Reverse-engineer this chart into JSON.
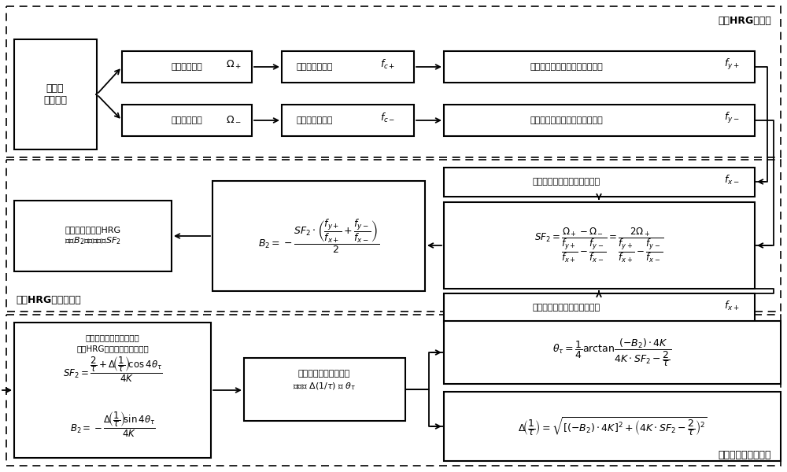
{
  "fig_width": 10.0,
  "fig_height": 6.0,
  "bg_color": "#ffffff",
  "section1_label": "速率HRG自激励",
  "section2_label": "速率HRG误差自标定",
  "section3_label": "谐振子参数反解辨识",
  "block_ctrl_lines": [
    "自激励",
    "控制模块"
  ],
  "block_pos": "自激励正输入Ω₊",
  "block_neg": "自激励负输入Ω₋",
  "block_cpos": "施加虚拟哥氏力fc₊",
  "block_cneg": "施加虚拟哥氏力fc₋",
  "block_fypos": "力反馈控制回路施加静电反馈力fy₊",
  "block_fyneg": "力反馈控制回路施加静电反馈力fy₋",
  "block_fxneg": "幅度控制回路施加静电驱动力fx₋",
  "block_fxpos": "幅度控制回路施加静电驱动力fx₊",
  "block_sf2_result": "自标定获得速率HRG\n零偏B₂和标度因数SF₂"
}
